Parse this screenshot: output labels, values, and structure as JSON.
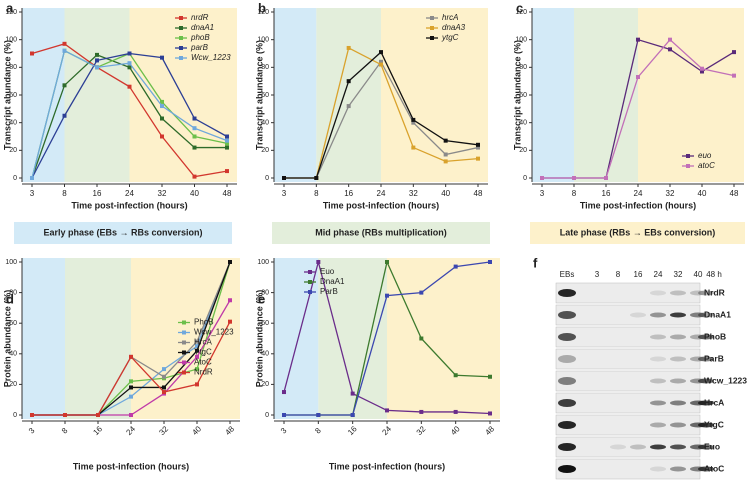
{
  "chart_data": [
    {
      "type": "line",
      "label": "a",
      "y_label": "Transcript abundance (%)",
      "x_label": "Time post-infection (hours)",
      "categories": [
        "3",
        "8",
        "16",
        "24",
        "32",
        "40",
        "48"
      ],
      "ylim": [
        0,
        120
      ],
      "yticks": [
        0,
        20,
        40,
        60,
        80,
        100,
        120
      ],
      "legend": "upper right",
      "legend_italic": true,
      "series": [
        {
          "name": "nrdR",
          "color": "#d2372e",
          "values": [
            90,
            97,
            80,
            66,
            30,
            1,
            5
          ]
        },
        {
          "name": "dnaA1",
          "color": "#2e6b2a",
          "values": [
            0,
            67,
            89,
            80,
            43,
            22,
            22
          ]
        },
        {
          "name": "phoB",
          "color": "#6cbf4a",
          "values": [
            0,
            92,
            80,
            90,
            55,
            30,
            25
          ]
        },
        {
          "name": "parB",
          "color": "#2c3f95",
          "values": [
            0,
            45,
            85,
            90,
            87,
            43,
            30
          ]
        },
        {
          "name": "Wcw_1223",
          "color": "#6fa8dc",
          "values": [
            0,
            92,
            80,
            83,
            52,
            36,
            27
          ]
        }
      ]
    },
    {
      "type": "line",
      "label": "b",
      "y_label": "Transcript abundance (%)",
      "x_label": "Time post-infection (hours)",
      "categories": [
        "3",
        "8",
        "16",
        "24",
        "32",
        "40",
        "48"
      ],
      "ylim": [
        0,
        120
      ],
      "yticks": [
        0,
        20,
        40,
        60,
        80,
        100,
        120
      ],
      "legend": "upper right",
      "legend_italic": true,
      "series": [
        {
          "name": "hrcA",
          "color": "#8a8a8a",
          "values": [
            0,
            0,
            52,
            84,
            40,
            17,
            22
          ]
        },
        {
          "name": "dnaA3",
          "color": "#d9a22c",
          "values": [
            0,
            0,
            94,
            82,
            22,
            12,
            14
          ]
        },
        {
          "name": "ytgC",
          "color": "#111111",
          "values": [
            0,
            0,
            70,
            91,
            42,
            27,
            24
          ]
        }
      ]
    },
    {
      "type": "line",
      "label": "c",
      "y_label": "Transcript abundance (%)",
      "x_label": "Time post-infection (hours)",
      "categories": [
        "3",
        "8",
        "16",
        "24",
        "32",
        "40",
        "48"
      ],
      "ylim": [
        0,
        120
      ],
      "yticks": [
        0,
        20,
        40,
        60,
        80,
        100,
        120
      ],
      "legend": "lower right",
      "legend_italic": true,
      "series": [
        {
          "name": "euo",
          "color": "#5a2a7a",
          "values": [
            0,
            0,
            0,
            100,
            93,
            77,
            91
          ]
        },
        {
          "name": "atoC",
          "color": "#c270b8",
          "values": [
            0,
            0,
            0,
            73,
            100,
            79,
            74
          ]
        }
      ]
    },
    {
      "type": "line",
      "label": "d",
      "y_label": "Protein abundance (%)",
      "x_label": "Time post-infection (hours)",
      "categories": [
        "3",
        "8",
        "16",
        "24",
        "32",
        "40",
        "48"
      ],
      "ylim": [
        0,
        100
      ],
      "yticks": [
        0,
        20,
        40,
        60,
        80,
        100
      ],
      "legend": "center right",
      "legend_italic": false,
      "rotate_x_labels": true,
      "series": [
        {
          "name": "PhoB",
          "color": "#6cbf4a",
          "values": [
            0,
            0,
            0,
            22,
            24,
            30,
            100
          ]
        },
        {
          "name": "Wcw_1223",
          "color": "#6fa8dc",
          "values": [
            0,
            0,
            0,
            12,
            30,
            45,
            100
          ]
        },
        {
          "name": "HrcA",
          "color": "#8a8a8a",
          "values": [
            0,
            0,
            0,
            38,
            25,
            48,
            100
          ]
        },
        {
          "name": "YtgC",
          "color": "#111111",
          "values": [
            0,
            0,
            0,
            18,
            18,
            42,
            100
          ]
        },
        {
          "name": "AtoC",
          "color": "#c03aa8",
          "values": [
            0,
            0,
            0,
            0,
            14,
            38,
            75
          ]
        },
        {
          "name": "NrdR",
          "color": "#d2372e",
          "values": [
            0,
            0,
            0,
            38,
            15,
            20,
            61
          ]
        }
      ]
    },
    {
      "type": "line",
      "label": "e",
      "y_label": "Protein abundance (%)",
      "x_label": "Time post-infection (hours)",
      "categories": [
        "3",
        "8",
        "16",
        "24",
        "32",
        "40",
        "48"
      ],
      "ylim": [
        0,
        100
      ],
      "yticks": [
        0,
        20,
        40,
        60,
        80,
        100
      ],
      "legend": "upper left",
      "legend_italic": false,
      "rotate_x_labels": true,
      "series": [
        {
          "name": "Euo",
          "color": "#6a2c8a",
          "values": [
            15,
            100,
            14,
            3,
            2,
            2,
            1
          ]
        },
        {
          "name": "DnaA1",
          "color": "#3d7a2e",
          "values": [
            0,
            0,
            0,
            100,
            50,
            26,
            25
          ]
        },
        {
          "name": "ParB",
          "color": "#3b47b0",
          "values": [
            0,
            0,
            0,
            78,
            80,
            97,
            100
          ]
        }
      ]
    }
  ],
  "phases": [
    {
      "label": "Early phase (EBs → RBs conversion)",
      "color": "#d3eaf7",
      "end": "8"
    },
    {
      "label": "Mid phase (RBs multiplication)",
      "color": "#e3eedb",
      "start": "8",
      "end": "24"
    },
    {
      "label": "Late phase (RBs → EBs conversion)",
      "color": "#fdf1cb",
      "start": "24"
    }
  ],
  "blot": {
    "label": "f",
    "lanes": [
      "EBs",
      "3",
      "8",
      "16",
      "24",
      "32",
      "40",
      "48 h"
    ],
    "proteins": [
      "NrdR",
      "DnaA1",
      "PhoB",
      "ParB",
      "Wcw_1223",
      "HrcA",
      "YtgC",
      "Euo",
      "AtoC"
    ]
  }
}
